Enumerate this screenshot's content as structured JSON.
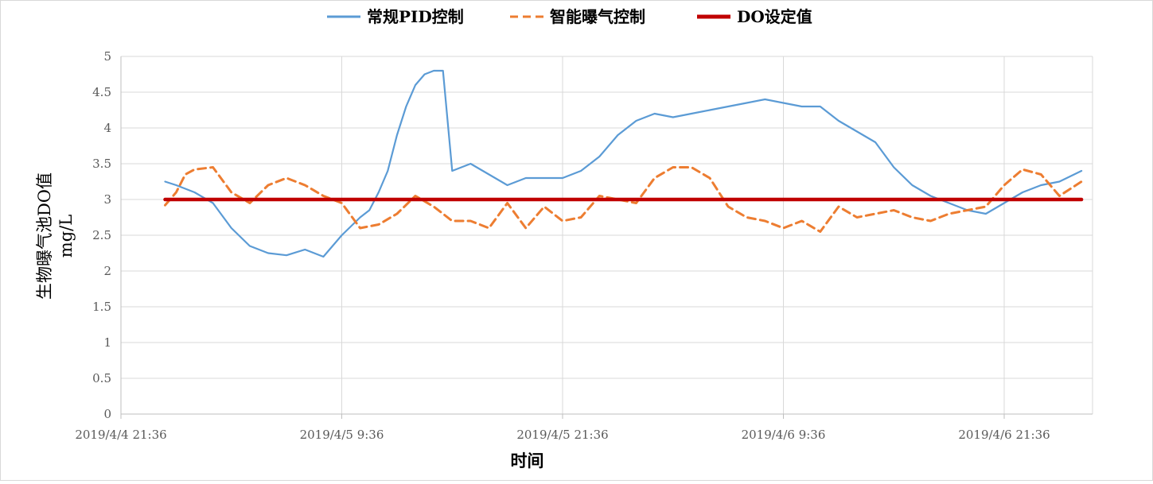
{
  "chart_data": {
    "type": "line",
    "title": "",
    "xlabel": "时间",
    "ylabel": "生物曝气池DO值",
    "ylabel_unit": "mg/L",
    "ylim": [
      0,
      5
    ],
    "y_ticks": [
      0,
      0.5,
      1,
      1.5,
      2,
      2.5,
      3,
      3.5,
      4,
      4.5,
      5
    ],
    "y_tick_labels": [
      "0",
      "0.5",
      "1",
      "1.5",
      "2",
      "2.5",
      "3",
      "3.5",
      "4",
      "4.5",
      "5"
    ],
    "x_unit": "hours since first tick label",
    "xlim": [
      0,
      52.8
    ],
    "x_ticks": [
      0,
      12,
      24,
      36,
      48
    ],
    "x_tick_labels": [
      "2019/4/4 21:36",
      "2019/4/5 9:36",
      "2019/4/5 21:36",
      "2019/4/6 9:36",
      "2019/4/6 21:36"
    ],
    "grid": true,
    "legend_position": "top",
    "series": [
      {
        "name": "常规PID控制",
        "color": "#5B9BD5",
        "style": "solid",
        "x": [
          2.4,
          3.0,
          4.0,
          5.0,
          6.0,
          7.0,
          8.0,
          9.0,
          10.0,
          11.0,
          12.0,
          13.0,
          13.5,
          14.0,
          14.5,
          15.0,
          15.5,
          16.0,
          16.5,
          17.0,
          17.5,
          18.0,
          19.0,
          20.0,
          21.0,
          22.0,
          23.0,
          24.0,
          25.0,
          26.0,
          27.0,
          28.0,
          29.0,
          30.0,
          31.0,
          32.0,
          33.0,
          34.0,
          35.0,
          36.0,
          37.0,
          38.0,
          39.0,
          40.0,
          41.0,
          42.0,
          43.0,
          44.0,
          45.0,
          46.0,
          47.0,
          48.0,
          49.0,
          50.0,
          51.0,
          52.2
        ],
        "y": [
          3.25,
          3.2,
          3.1,
          2.95,
          2.6,
          2.35,
          2.25,
          2.22,
          2.3,
          2.2,
          2.5,
          2.75,
          2.85,
          3.1,
          3.4,
          3.9,
          4.3,
          4.6,
          4.75,
          4.8,
          4.8,
          3.4,
          3.5,
          3.35,
          3.2,
          3.3,
          3.3,
          3.3,
          3.4,
          3.6,
          3.9,
          4.1,
          4.2,
          4.15,
          4.2,
          4.25,
          4.3,
          4.35,
          4.4,
          4.35,
          4.3,
          4.3,
          4.1,
          3.95,
          3.8,
          3.45,
          3.2,
          3.05,
          2.95,
          2.85,
          2.8,
          2.95,
          3.1,
          3.2,
          3.25,
          3.4
        ]
      },
      {
        "name": "智能曝气控制",
        "color": "#ED7D31",
        "style": "dashed",
        "x": [
          2.4,
          3.0,
          3.5,
          4.0,
          5.0,
          6.0,
          7.0,
          8.0,
          9.0,
          10.0,
          11.0,
          12.0,
          13.0,
          14.0,
          15.0,
          16.0,
          17.0,
          18.0,
          19.0,
          20.0,
          21.0,
          22.0,
          23.0,
          24.0,
          25.0,
          26.0,
          27.0,
          28.0,
          29.0,
          30.0,
          31.0,
          32.0,
          33.0,
          34.0,
          35.0,
          36.0,
          37.0,
          38.0,
          39.0,
          40.0,
          41.0,
          42.0,
          43.0,
          44.0,
          45.0,
          46.0,
          47.0,
          48.0,
          49.0,
          50.0,
          51.0,
          52.2
        ],
        "y": [
          2.92,
          3.1,
          3.35,
          3.42,
          3.45,
          3.1,
          2.95,
          3.2,
          3.3,
          3.2,
          3.05,
          2.95,
          2.6,
          2.65,
          2.8,
          3.05,
          2.9,
          2.7,
          2.7,
          2.6,
          2.95,
          2.6,
          2.9,
          2.7,
          2.75,
          3.05,
          3.0,
          2.95,
          3.3,
          3.45,
          3.45,
          3.3,
          2.9,
          2.75,
          2.7,
          2.6,
          2.7,
          2.55,
          2.9,
          2.75,
          2.8,
          2.85,
          2.75,
          2.7,
          2.8,
          2.85,
          2.9,
          3.2,
          3.42,
          3.35,
          3.05,
          3.25
        ]
      },
      {
        "name": "DO设定值",
        "color": "#C00000",
        "style": "solid-thick",
        "x": [
          2.4,
          52.2
        ],
        "y": [
          3.0,
          3.0
        ]
      }
    ]
  }
}
